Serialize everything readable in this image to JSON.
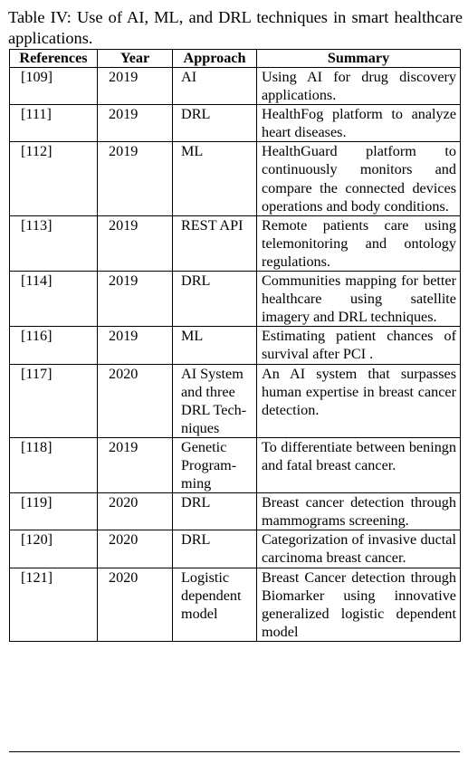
{
  "caption": "Table IV: Use of AI, ML, and DRL techniques in smart healthcare applications.",
  "table": {
    "headers": [
      "References",
      "Year",
      "Approach",
      "Summary"
    ],
    "rows": [
      {
        "ref": "[109]",
        "year": "2019",
        "approach": "AI",
        "summary": "Using AI for drug discovery applications."
      },
      {
        "ref": "[111]",
        "year": "2019",
        "approach": "DRL",
        "summary": "HealthFog platform to ana­lyze heart diseases."
      },
      {
        "ref": "[112]",
        "year": "2019",
        "approach": "ML",
        "summary": "HealthGuard platform to continuously monitors and compare the connected de­vices operations and body conditions."
      },
      {
        "ref": "[113]",
        "year": "2019",
        "approach": "REST API",
        "summary": "Remote patients care using telemonitoring and ontology regulations."
      },
      {
        "ref": "[114]",
        "year": "2019",
        "approach": "DRL",
        "summary": "Communities mapping for better healthcare using satellite imagery and DRL techniques."
      },
      {
        "ref": "[116]",
        "year": "2019",
        "approach": "ML",
        "summary": "Estimating patient chances of survival after PCI ."
      },
      {
        "ref": "[117]",
        "year": "2020",
        "approach": "AI System and three DRL Tech­niques",
        "summary": "An AI system that surpasses human expertise in breast cancer detection."
      },
      {
        "ref": "[118]",
        "year": "2019",
        "approach": "Genetic Program­ming",
        "summary": "To differentiate between beningn and fatal breast cancer."
      },
      {
        "ref": "[119]",
        "year": "2020",
        "approach": "DRL",
        "summary": "Breast cancer detection through mammograms screening."
      },
      {
        "ref": "[120]",
        "year": "2020",
        "approach": "DRL",
        "summary": "Categorization of invasive ductal carcinoma breast cancer."
      },
      {
        "ref": "[121]",
        "year": "2020",
        "approach": "Logistic depen­dent model",
        "summary": "Breast Cancer detection through Biomarker using innovative generalized logistic dependent model"
      }
    ]
  }
}
